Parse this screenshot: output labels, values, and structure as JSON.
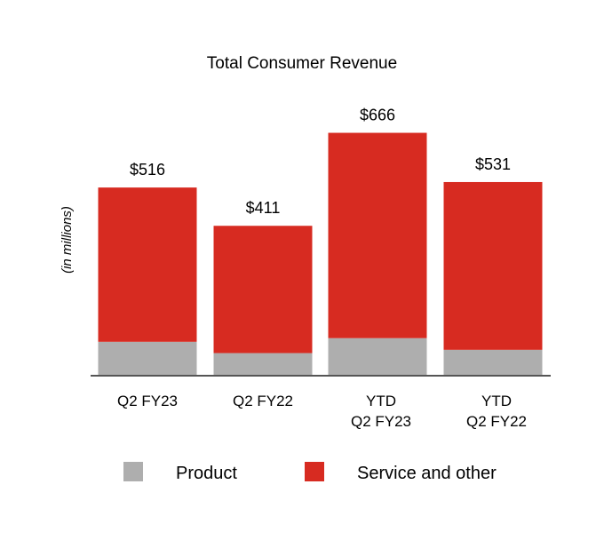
{
  "chart_data": {
    "type": "bar",
    "stacked": true,
    "title": "Total Consumer Revenue",
    "ylabel": "(in millions)",
    "xlabel": "",
    "ylim": [
      0,
      700
    ],
    "grid": false,
    "legend_position": "bottom",
    "categories": [
      [
        "Q2 FY23"
      ],
      [
        "Q2 FY22"
      ],
      [
        "YTD",
        "Q2 FY23"
      ],
      [
        "YTD",
        "Q2 FY22"
      ]
    ],
    "totals": [
      516,
      411,
      666,
      531
    ],
    "total_labels": [
      "$516",
      "$411",
      "$666",
      "$531"
    ],
    "series": [
      {
        "name": "Product",
        "color": "#aeaeae",
        "values": [
          93,
          62,
          103,
          71
        ]
      },
      {
        "name": "Service and other",
        "color": "#d72b21",
        "values": [
          423,
          349,
          563,
          460
        ]
      }
    ]
  },
  "axis_color": "#555555"
}
